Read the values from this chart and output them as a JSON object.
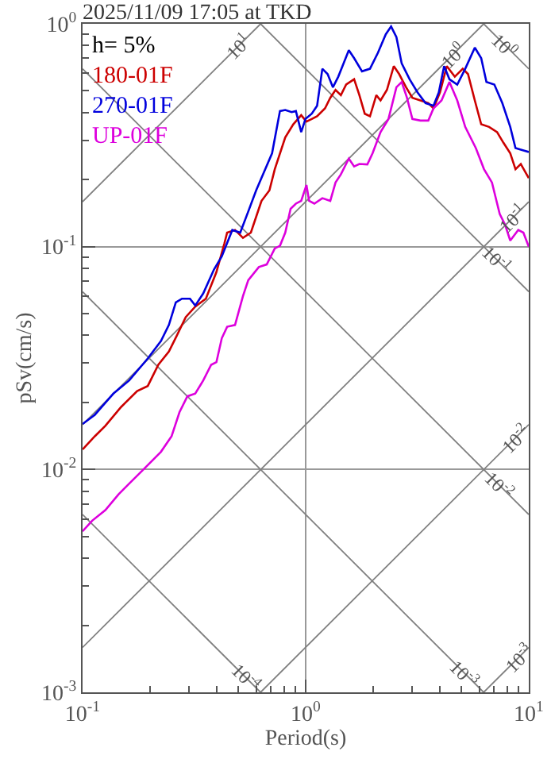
{
  "chart_data": {
    "type": "line",
    "title": "2025/11/09 17:05 at TKD",
    "xlabel": "Period(s)",
    "ylabel": "pSv(cm/s)",
    "legend_title": "h= 5%",
    "legend": "top left",
    "log": "xy",
    "grid": true,
    "xlim": [
      0.1,
      10
    ],
    "ylim": [
      0.001,
      1
    ],
    "xticks": [
      {
        "value": 0.1,
        "label": "10$^{-1}$"
      },
      {
        "value": 1,
        "label": "10$^{0}$"
      },
      {
        "value": 10,
        "label": "10$^{1}$"
      }
    ],
    "yticks": [
      {
        "value": 0.001,
        "label": "10$^{-3}$"
      },
      {
        "value": 0.01,
        "label": "10$^{-2}$"
      },
      {
        "value": 0.1,
        "label": "10$^{-1}$"
      },
      {
        "value": 1,
        "label": "10$^{0}$"
      }
    ],
    "series": [
      {
        "name": "180-01F",
        "color": "#cc0000",
        "x": [
          0.1,
          0.1135,
          0.1265,
          0.149,
          0.1756,
          0.196,
          0.2185,
          0.2437,
          0.2646,
          0.29,
          0.32,
          0.357,
          0.398,
          0.4325,
          0.4446,
          0.4823,
          0.5236,
          0.568,
          0.6,
          0.634,
          0.688,
          0.727,
          0.81,
          0.88,
          0.955,
          1.008,
          1.065,
          1.125,
          1.221,
          1.289,
          1.361,
          1.438,
          1.519,
          1.649,
          1.741,
          1.84,
          1.942,
          2.073,
          2.166,
          2.313,
          2.483,
          2.624,
          2.818,
          3.008,
          3.267,
          3.546,
          3.74,
          4.0,
          4.29,
          4.66,
          5.06,
          5.34,
          5.73,
          6.12,
          6.64,
          7.21,
          7.7,
          8.26,
          8.72,
          9.21,
          10
        ],
        "values": [
          0.0123,
          0.0141,
          0.0157,
          0.0191,
          0.0225,
          0.0237,
          0.0295,
          0.0338,
          0.0399,
          0.0483,
          0.0538,
          0.0584,
          0.0768,
          0.1037,
          0.1156,
          0.1188,
          0.1095,
          0.1156,
          0.1362,
          0.1605,
          0.179,
          0.2227,
          0.309,
          0.354,
          0.389,
          0.364,
          0.374,
          0.3845,
          0.4173,
          0.4656,
          0.505,
          0.4785,
          0.534,
          0.564,
          0.4785,
          0.395,
          0.3845,
          0.4785,
          0.453,
          0.505,
          0.646,
          0.595,
          0.519,
          0.4656,
          0.453,
          0.441,
          0.4173,
          0.492,
          0.646,
          0.579,
          0.6286,
          0.595,
          0.453,
          0.354,
          0.3446,
          0.3266,
          0.2926,
          0.2624,
          0.2227,
          0.235,
          0.203
        ]
      },
      {
        "name": "270-01F",
        "color": "#0000dd",
        "x": [
          0.1,
          0.1135,
          0.1374,
          0.1618,
          0.196,
          0.2245,
          0.2437,
          0.2618,
          0.279,
          0.303,
          0.32,
          0.3475,
          0.388,
          0.4207,
          0.469,
          0.509,
          0.553,
          0.6,
          0.651,
          0.707,
          0.767,
          0.81,
          0.865,
          0.904,
          0.955,
          0.998,
          1.065,
          1.125,
          1.188,
          1.254,
          1.325,
          1.4,
          1.478,
          1.561,
          1.649,
          1.789,
          1.942,
          2.108,
          2.286,
          2.415,
          2.551,
          2.694,
          2.924,
          3.175,
          3.445,
          3.74,
          3.95,
          4.175,
          4.41,
          4.78,
          5.19,
          5.73,
          6.12,
          6.46,
          7.01,
          7.61,
          8.26,
          8.72,
          9.21,
          10
        ],
        "values": [
          0.016,
          0.0176,
          0.0219,
          0.0251,
          0.0315,
          0.0377,
          0.0445,
          0.0562,
          0.0584,
          0.0584,
          0.0544,
          0.0617,
          0.0789,
          0.0904,
          0.1188,
          0.1156,
          0.1438,
          0.179,
          0.2167,
          0.2624,
          0.406,
          0.4104,
          0.4017,
          0.406,
          0.3266,
          0.374,
          0.395,
          0.4288,
          0.6286,
          0.595,
          0.519,
          0.579,
          0.664,
          0.761,
          0.701,
          0.612,
          0.6286,
          0.741,
          0.897,
          0.973,
          0.872,
          0.664,
          0.564,
          0.492,
          0.441,
          0.4288,
          0.492,
          0.646,
          0.564,
          0.534,
          0.6286,
          0.782,
          0.701,
          0.548,
          0.534,
          0.441,
          0.3446,
          0.277,
          0.2726,
          0.266
        ]
      },
      {
        "name": "UP-01F",
        "color": "#dd00dd",
        "x": [
          0.1,
          0.1104,
          0.1265,
          0.145,
          0.1618,
          0.1854,
          0.2245,
          0.2506,
          0.272,
          0.295,
          0.32,
          0.3475,
          0.377,
          0.398,
          0.4207,
          0.4446,
          0.4823,
          0.5236,
          0.553,
          0.6166,
          0.669,
          0.727,
          0.767,
          0.81,
          0.856,
          0.904,
          0.955,
          1.008,
          1.036,
          1.094,
          1.188,
          1.289,
          1.361,
          1.438,
          1.561,
          1.649,
          1.741,
          1.89,
          1.995,
          2.166,
          2.35,
          2.551,
          2.694,
          2.845,
          3.008,
          3.267,
          3.546,
          3.74,
          4.065,
          4.41,
          4.78,
          5.19,
          5.79,
          6.3,
          6.84,
          7.41,
          7.83,
          8.26,
          8.97,
          9.46,
          10
        ],
        "values": [
          0.00528,
          0.00589,
          0.00657,
          0.00774,
          0.00864,
          0.0099,
          0.012,
          0.0141,
          0.0181,
          0.0213,
          0.0219,
          0.0251,
          0.0295,
          0.0303,
          0.0388,
          0.0437,
          0.0445,
          0.06,
          0.0707,
          0.081,
          0.0832,
          0.0982,
          0.1009,
          0.1156,
          0.1479,
          0.156,
          0.1605,
          0.189,
          0.1605,
          0.156,
          0.165,
          0.1605,
          0.194,
          0.211,
          0.2485,
          0.229,
          0.235,
          0.234,
          0.2624,
          0.3266,
          0.374,
          0.519,
          0.548,
          0.4656,
          0.374,
          0.368,
          0.368,
          0.4173,
          0.453,
          0.548,
          0.453,
          0.3446,
          0.277,
          0.2227,
          0.194,
          0.14,
          0.1255,
          0.1065,
          0.1188,
          0.1156,
          0.1
        ]
      },
      {
        "color": "#808080",
        "x": [
          0.1,
          0.628
        ],
        "values": [
          0.159,
          1
        ]
      },
      {
        "color": "#808080",
        "x": [
          0.1,
          6.28
        ],
        "values": [
          0.0159,
          1
        ]
      },
      {
        "color": "#808080",
        "x": [
          0.1,
          10
        ],
        "values": [
          0.00159,
          0.159
        ]
      },
      {
        "color": "#808080",
        "x": [
          0.628,
          10
        ],
        "values": [
          0.001,
          0.0159
        ]
      },
      {
        "color": "#808080",
        "x": [
          6.28,
          10
        ],
        "values": [
          0.001,
          0.00159
        ]
      },
      {
        "color": "#808080",
        "x": [
          6.28,
          10
        ],
        "values": [
          1,
          0.628
        ]
      },
      {
        "color": "#808080",
        "x": [
          0.628,
          10
        ],
        "values": [
          1,
          0.0628
        ]
      },
      {
        "color": "#808080",
        "x": [
          0.1,
          10
        ],
        "values": [
          0.628,
          0.00628
        ]
      },
      {
        "color": "#808080",
        "x": [
          0.1,
          6.28
        ],
        "values": [
          0.0628,
          0.001
        ]
      },
      {
        "color": "#808080",
        "x": [
          0.1,
          0.628
        ],
        "values": [
          0.00628,
          0.001
        ]
      }
    ],
    "annotations": [
      {
        "text": "10$^{1}$",
        "x": 0.457,
        "y": 0.727
      },
      {
        "text": "10$^{0}$",
        "x": 4.17,
        "y": 0.664
      },
      {
        "text": "10$^{0}$",
        "x": 8.45,
        "y": 0.744
      },
      {
        "text": "10$^{-1}$",
        "x": 7.8,
        "y": 0.124
      },
      {
        "text": "10$^{-1}$",
        "x": 7.8,
        "y": 0.0806
      },
      {
        "text": "10$^{-2}$",
        "x": 8.0,
        "y": 0.0127
      },
      {
        "text": "10$^{-2}$",
        "x": 8.0,
        "y": 0.00785
      },
      {
        "text": "10$^{-3}$",
        "x": 8.3,
        "y": 0.00132
      },
      {
        "text": "10$^{-3}$",
        "x": 5.6,
        "y": 0.00112
      },
      {
        "text": "10$^{-4}$",
        "x": 0.585,
        "y": 0.00107
      }
    ]
  }
}
